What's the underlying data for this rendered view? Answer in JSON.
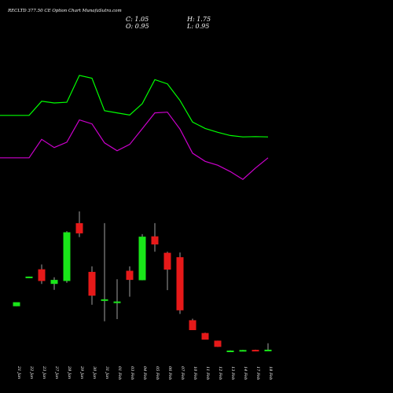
{
  "header": {
    "title": "RECLTD 377.50 CE Option Chart MunafaSutra.com",
    "open_label": "O: 0.95",
    "high_label": "H: 1.75",
    "low_label": "L: 0.95",
    "close_label": "C: 1.05"
  },
  "colors": {
    "background": "#000000",
    "bull": "#19e619",
    "bear": "#e61919",
    "wick": "#a0a0a0",
    "upper_band": "#00ff00",
    "lower_band": "#cc00cc",
    "text": "#ffffff"
  },
  "chart_data": {
    "type": "candlestick",
    "title": "RECLTD 377.50 CE Option Chart MunafaSutra.com",
    "categories": [
      "21 Jan",
      "22 Jan",
      "23 Jan",
      "27 Jan",
      "28 Jan",
      "29 Jan",
      "30 Jan",
      "31 Jan",
      "01 Feb",
      "03 Feb",
      "04 Feb",
      "05 Feb",
      "06 Feb",
      "07 Feb",
      "10 Feb",
      "11 Feb",
      "12 Feb",
      "13 Feb",
      "14 Feb",
      "17 Feb",
      "18 Feb"
    ],
    "ohlc": [
      {
        "o": 15.1,
        "h": 16.2,
        "l": 15.1,
        "c": 16.2
      },
      {
        "o": 23.0,
        "h": 23.2,
        "l": 23.0,
        "c": 23.2
      },
      {
        "o": 25.2,
        "h": 26.5,
        "l": 21.2,
        "c": 22.0
      },
      {
        "o": 21.2,
        "h": 23.0,
        "l": 19.6,
        "c": 22.3
      },
      {
        "o": 22.0,
        "h": 35.6,
        "l": 21.5,
        "c": 35.3
      },
      {
        "o": 37.8,
        "h": 41.0,
        "l": 34.0,
        "c": 35.0
      },
      {
        "o": 24.5,
        "h": 26.0,
        "l": 15.5,
        "c": 18.0
      },
      {
        "o": 16.8,
        "h": 37.8,
        "l": 11.0,
        "c": 17.0
      },
      {
        "o": 16.0,
        "h": 22.5,
        "l": 11.6,
        "c": 16.4
      },
      {
        "o": 24.8,
        "h": 26.0,
        "l": 17.7,
        "c": 22.3
      },
      {
        "o": 22.2,
        "h": 34.8,
        "l": 22.2,
        "c": 34.1
      },
      {
        "o": 34.2,
        "h": 37.8,
        "l": 30.0,
        "c": 32.0
      },
      {
        "o": 29.7,
        "h": 30.0,
        "l": 19.5,
        "c": 25.1
      },
      {
        "o": 28.5,
        "h": 29.8,
        "l": 13.0,
        "c": 14.0
      },
      {
        "o": 11.3,
        "h": 11.7,
        "l": 8.6,
        "c": 8.6
      },
      {
        "o": 7.8,
        "h": 7.9,
        "l": 6.0,
        "c": 6.0
      },
      {
        "o": 5.7,
        "h": 5.7,
        "l": 4.0,
        "c": 4.0
      },
      {
        "o": 2.95,
        "h": 3.05,
        "l": 2.8,
        "c": 3.0
      },
      {
        "o": 2.95,
        "h": 3.2,
        "l": 2.9,
        "c": 3.15
      },
      {
        "o": 3.2,
        "h": 3.25,
        "l": 2.95,
        "c": 3.0
      },
      {
        "o": 2.95,
        "h": 5.0,
        "l": 2.95,
        "c": 3.25
      }
    ],
    "upper_band": [
      41.5,
      41.5,
      45.5,
      45.0,
      45.2,
      52.8,
      52.0,
      42.8,
      42.2,
      41.6,
      44.8,
      51.6,
      50.4,
      45.7,
      39.6,
      37.8,
      36.7,
      35.8,
      35.4,
      35.5,
      35.4
    ],
    "lower_band": [
      29.5,
      29.5,
      34.7,
      32.4,
      33.9,
      40.2,
      39.1,
      33.7,
      31.5,
      33.3,
      37.7,
      42.2,
      42.4,
      37.6,
      30.8,
      28.5,
      27.4,
      25.6,
      23.4,
      26.6,
      29.5
    ]
  }
}
